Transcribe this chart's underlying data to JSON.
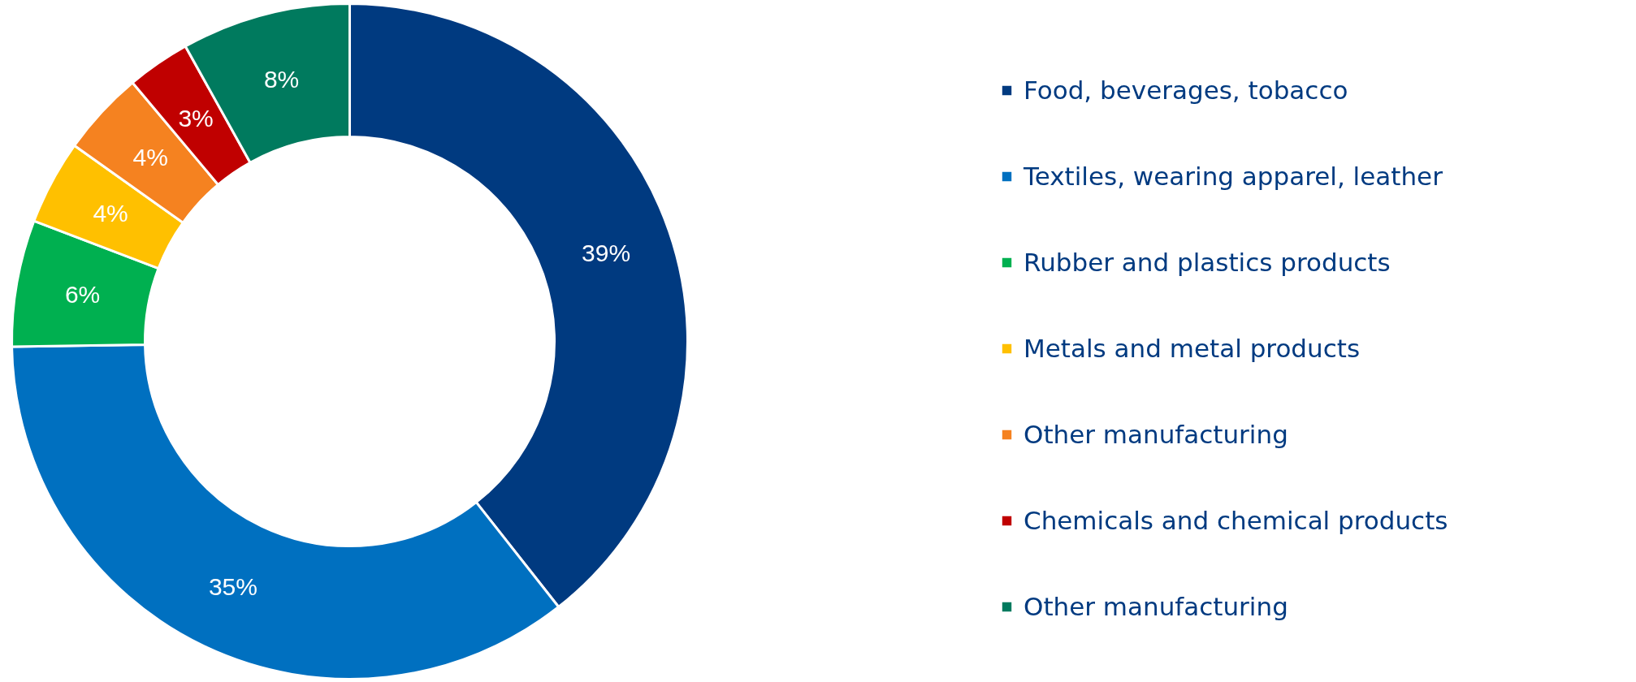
{
  "chart_data": {
    "type": "donut",
    "categories": [
      "Food, beverages, tobacco",
      "Textiles, wearing apparel, leather",
      "Rubber and plastics products",
      "Metals and metal products",
      "Other manufacturing",
      "Chemicals and chemical products",
      "Other manufacturing"
    ],
    "values": [
      39,
      35,
      6,
      4,
      4,
      3,
      8
    ],
    "value_labels": [
      "39%",
      "35%",
      "6%",
      "4%",
      "4%",
      "3%",
      "8%"
    ],
    "colors": [
      "#003a80",
      "#0070c0",
      "#00b050",
      "#ffc000",
      "#f58220",
      "#c00000",
      "#007a5e"
    ],
    "legend": "right"
  }
}
